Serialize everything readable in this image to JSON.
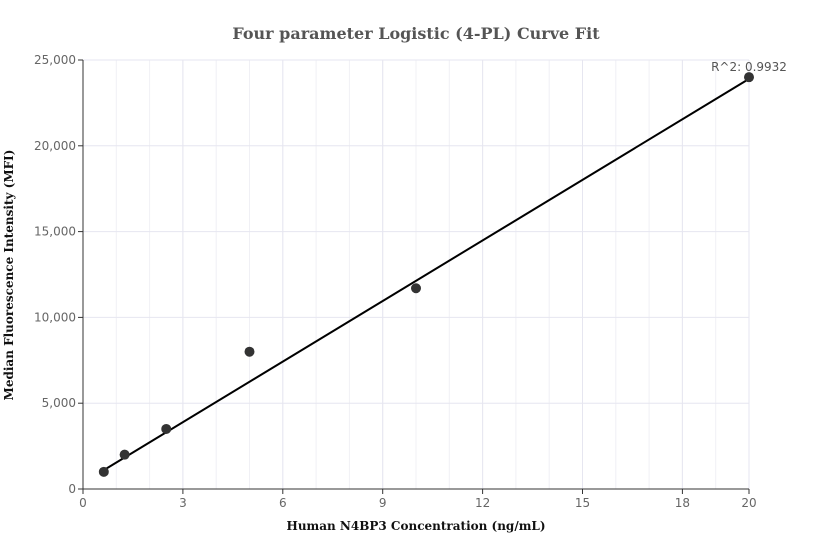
{
  "chart_data": {
    "type": "scatter",
    "title": "Four parameter Logistic (4-PL) Curve Fit",
    "xlabel": "Human N4BP3 Concentration (ng/mL)",
    "ylabel": "Median Fluorescence Intensity (MFI)",
    "xlim": [
      0,
      20
    ],
    "ylim": [
      0,
      25000
    ],
    "x_ticks": [
      0,
      3,
      6,
      9,
      12,
      15,
      18,
      20
    ],
    "y_ticks": [
      0,
      5000,
      10000,
      15000,
      20000,
      25000
    ],
    "x_tick_labels": [
      "0",
      "3",
      "6",
      "9",
      "12",
      "15",
      "18",
      "20"
    ],
    "y_tick_labels": [
      "0",
      "5,000",
      "10,000",
      "15,000",
      "20,000",
      "25,000"
    ],
    "grid": true,
    "series": [
      {
        "kind": "points",
        "x": [
          0.625,
          1.25,
          2.5,
          5,
          10,
          20
        ],
        "y": [
          1000,
          2000,
          3500,
          8000,
          11700,
          24000
        ]
      },
      {
        "kind": "fit-line",
        "x": [
          0.625,
          20
        ],
        "y": [
          1100,
          23900
        ]
      }
    ],
    "annotations": [
      {
        "text": "R^2: 0.9932"
      }
    ],
    "colors": {
      "points": "#333333",
      "line": "#000000",
      "grid": "#e6e6f0",
      "axis": "#333333"
    }
  }
}
